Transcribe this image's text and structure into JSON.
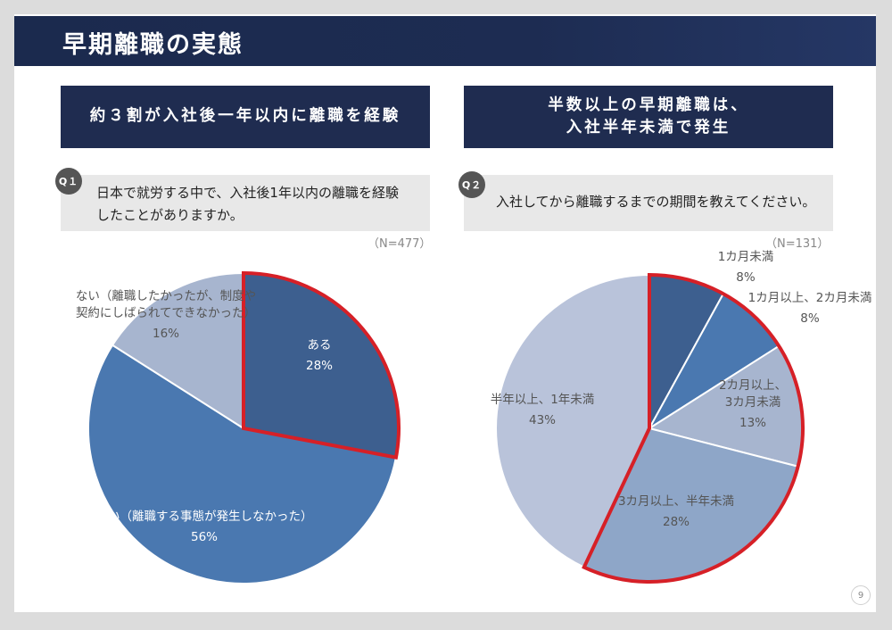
{
  "page": {
    "title": "早期離職の実態",
    "page_number": "9"
  },
  "left": {
    "headline": "約３割が入社後一年以内に離職を経験",
    "badge": "Q１",
    "question": "日本で就労する中で、入社後1年以内の離職を経験\nしたことがありますか。",
    "n": "（N=477）"
  },
  "right": {
    "headline": "半数以上の早期離職は、\n入社半年未満で発生",
    "badge": "Q２",
    "question": "入社してから離職するまでの期間を教えてください。",
    "n": "（N=131）"
  },
  "colors": {
    "header": "#1d2c52",
    "highlight": "#d62027"
  },
  "chart_data": [
    {
      "type": "pie",
      "title": "",
      "start_angle_deg": 0,
      "direction": "clockwise",
      "slices": [
        {
          "label": "ある",
          "value": 28,
          "pct": "28%",
          "color": "#3d5f8f",
          "text_color": "#ffffff",
          "highlight": true
        },
        {
          "label": "ない（離職する事態が発生しなかった）",
          "value": 56,
          "pct": "56%",
          "color": "#4a78b0",
          "text_color": "#ffffff",
          "highlight": false
        },
        {
          "label": "ない（離職したかったが、制度や\n契約にしばられてできなかった）",
          "value": 16,
          "pct": "16%",
          "color": "#a7b5cf",
          "text_color": "#555555",
          "highlight": false
        }
      ]
    },
    {
      "type": "pie",
      "title": "",
      "start_angle_deg": 0,
      "direction": "clockwise",
      "slices": [
        {
          "label": "1カ月未満",
          "value": 8,
          "pct": "8%",
          "color": "#3d5f8f",
          "text_color": "#555555",
          "highlight": true
        },
        {
          "label": "1カ月以上、2カ月未満",
          "value": 8,
          "pct": "8%",
          "color": "#4a78b0",
          "text_color": "#555555",
          "highlight": true
        },
        {
          "label": "2カ月以上、\n3カ月未満",
          "value": 13,
          "pct": "13%",
          "color": "#a7b5cf",
          "text_color": "#555555",
          "highlight": true
        },
        {
          "label": "3カ月以上、半年未満",
          "value": 28,
          "pct": "28%",
          "color": "#8ea6c8",
          "text_color": "#555555",
          "highlight": true
        },
        {
          "label": "半年以上、1年未満",
          "value": 43,
          "pct": "43%",
          "color": "#b9c3da",
          "text_color": "#555555",
          "highlight": false
        }
      ]
    }
  ]
}
